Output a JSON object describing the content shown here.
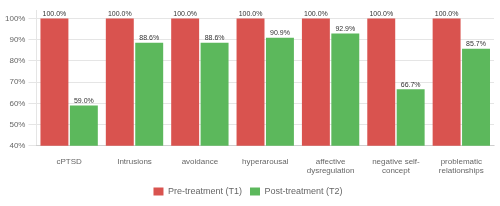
{
  "chart_data": {
    "type": "bar",
    "categories": [
      "cPTSD",
      "Intrusions",
      "avoidance",
      "hyperarousal",
      "affective\ndysregulation",
      "negative self-\nconcept",
      "problematic\nrelationships"
    ],
    "series": [
      {
        "name": "Pre-treatment (T1)",
        "color": "#d9534f",
        "values": [
          100.0,
          100.0,
          100.0,
          100.0,
          100.0,
          100.0,
          100.0
        ],
        "value_labels": [
          "100.0%",
          "100.0%",
          "100.0%",
          "100.0%",
          "100.0%",
          "100.0%",
          "100.0%"
        ]
      },
      {
        "name": "Post-treatment (T2)",
        "color": "#5cb85c",
        "values": [
          59.0,
          88.6,
          88.6,
          90.9,
          92.9,
          66.7,
          85.7
        ],
        "value_labels": [
          "59.0%",
          "88.6%",
          "88.6%",
          "90.9%",
          "92.9%",
          "66.7%",
          "85.7%"
        ]
      }
    ],
    "ylim": [
      40,
      104
    ],
    "yticks": [
      {
        "value": 40,
        "label": "40%"
      },
      {
        "value": 50,
        "label": "50%"
      },
      {
        "value": 60,
        "label": "60%"
      },
      {
        "value": 70,
        "label": "70%"
      },
      {
        "value": 80,
        "label": "80%"
      },
      {
        "value": 90,
        "label": "90%"
      },
      {
        "value": 100,
        "label": "100%"
      }
    ],
    "grid": true,
    "legend": "bottom",
    "data_labels": true
  }
}
